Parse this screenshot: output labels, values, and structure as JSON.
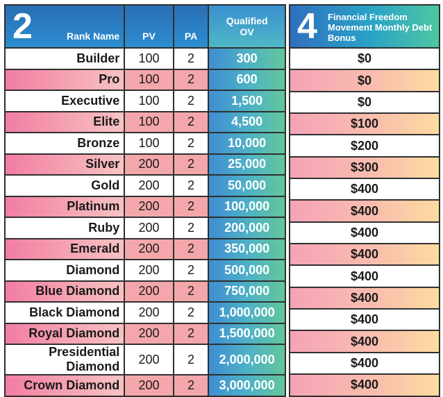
{
  "left_header": {
    "number": "2",
    "rank_name": "Rank Name",
    "pv": "PV",
    "pa": "PA",
    "qualified_ov": "Qualified OV"
  },
  "right_header": {
    "number": "4",
    "title": "Financial Freedom Movement Monthly Debt Bonus"
  },
  "rows": [
    {
      "rank": "Builder",
      "pv": "100",
      "pa": "2",
      "ov": "300",
      "bonus": "$0"
    },
    {
      "rank": "Pro",
      "pv": "100",
      "pa": "2",
      "ov": "600",
      "bonus": "$0"
    },
    {
      "rank": "Executive",
      "pv": "100",
      "pa": "2",
      "ov": "1,500",
      "bonus": "$0"
    },
    {
      "rank": "Elite",
      "pv": "100",
      "pa": "2",
      "ov": "4,500",
      "bonus": "$100"
    },
    {
      "rank": "Bronze",
      "pv": "100",
      "pa": "2",
      "ov": "10,000",
      "bonus": "$200"
    },
    {
      "rank": "Silver",
      "pv": "200",
      "pa": "2",
      "ov": "25,000",
      "bonus": "$300"
    },
    {
      "rank": "Gold",
      "pv": "200",
      "pa": "2",
      "ov": "50,000",
      "bonus": "$400"
    },
    {
      "rank": "Platinum",
      "pv": "200",
      "pa": "2",
      "ov": "100,000",
      "bonus": "$400"
    },
    {
      "rank": "Ruby",
      "pv": "200",
      "pa": "2",
      "ov": "200,000",
      "bonus": "$400"
    },
    {
      "rank": "Emerald",
      "pv": "200",
      "pa": "2",
      "ov": "350,000",
      "bonus": "$400"
    },
    {
      "rank": "Diamond",
      "pv": "200",
      "pa": "2",
      "ov": "500,000",
      "bonus": "$400"
    },
    {
      "rank": "Blue Diamond",
      "pv": "200",
      "pa": "2",
      "ov": "750,000",
      "bonus": "$400"
    },
    {
      "rank": "Black Diamond",
      "pv": "200",
      "pa": "2",
      "ov": "1,000,000",
      "bonus": "$400"
    },
    {
      "rank": "Royal Diamond",
      "pv": "200",
      "pa": "2",
      "ov": "1,500,000",
      "bonus": "$400"
    },
    {
      "rank": "Presidential Diamond",
      "pv": "200",
      "pa": "2",
      "ov": "2,000,000",
      "bonus": "$400"
    },
    {
      "rank": "Crown Diamond",
      "pv": "200",
      "pa": "2",
      "ov": "3,000,000",
      "bonus": "$400"
    }
  ],
  "colors": {
    "header_blue": "#2b8ed0",
    "row_pink": "#f4a7aa",
    "ov_gradient_start": "#3f8ed3",
    "ov_gradient_end": "#63c69b",
    "bonus_gradient_end": "#fddb9f"
  }
}
